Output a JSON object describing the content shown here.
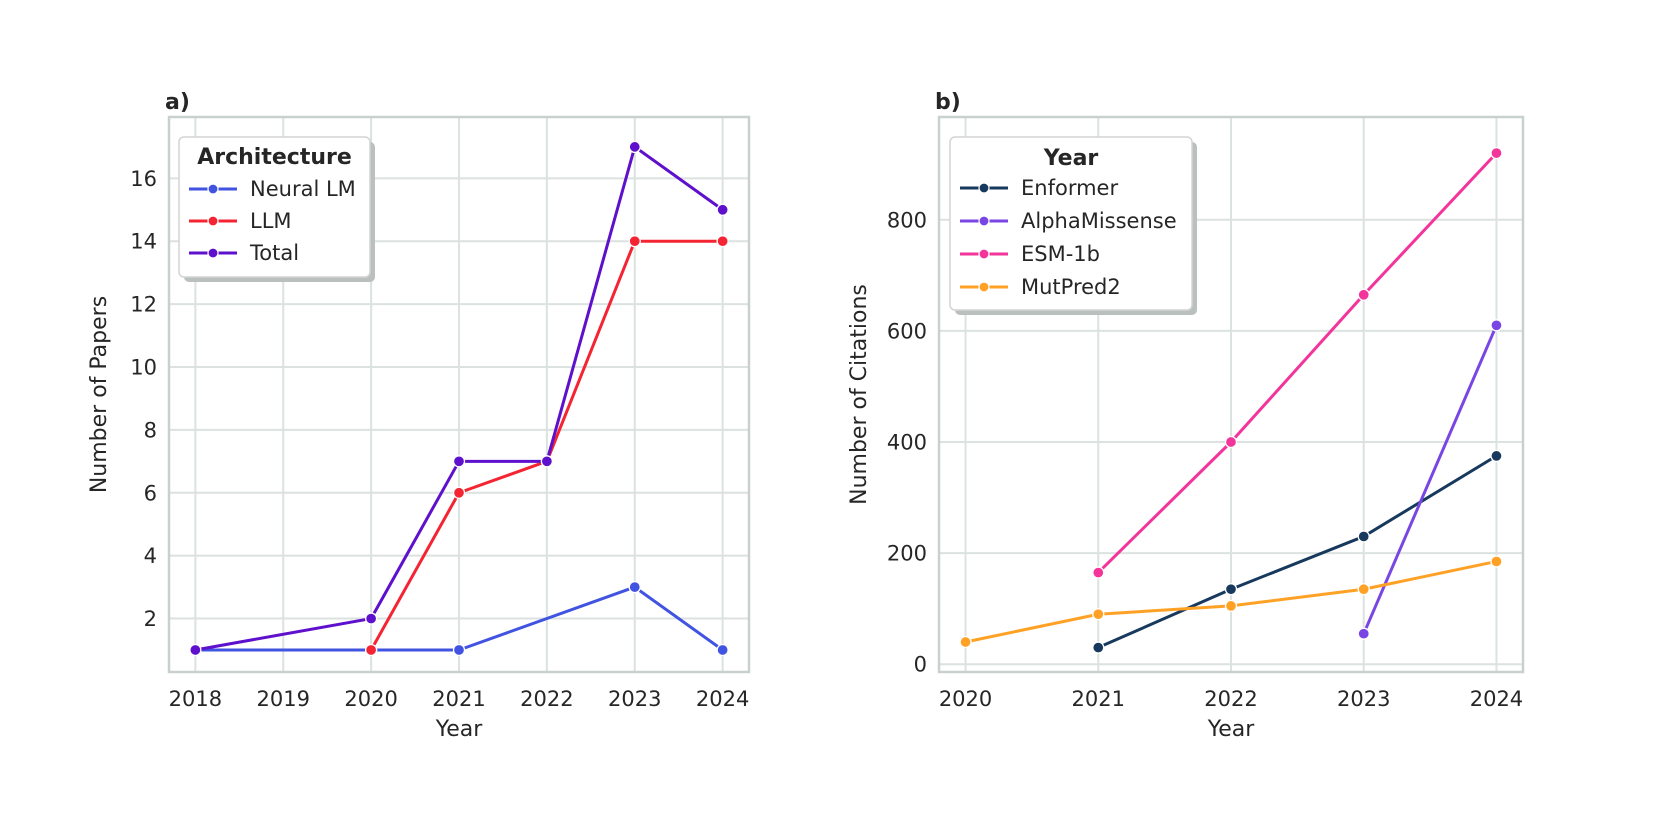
{
  "figure": {
    "background": "#ffffff",
    "text_color": "#262626",
    "grid_color": "#dbe2df",
    "axes_border_color": "#c9d1ce",
    "legend_shadow_color": "#b9c0bd",
    "legend_border_color": "#d4d4d4"
  },
  "chart_data": [
    {
      "type": "line",
      "panel_label": "a)",
      "title": "",
      "xlabel": "Year",
      "ylabel": "Number of Papers",
      "legend_title": "Architecture",
      "legend_position": "upper left",
      "grid": true,
      "x_ticks": [
        2018,
        2019,
        2020,
        2021,
        2022,
        2023,
        2024
      ],
      "y_ticks": [
        2,
        4,
        6,
        8,
        10,
        12,
        14,
        16
      ],
      "x_range": [
        2017.7,
        2024.3
      ],
      "y_range": [
        0.3,
        17.95
      ],
      "series": [
        {
          "name": "Neural LM",
          "color": "#4153e1",
          "x": [
            2018,
            2020,
            2021,
            2023,
            2024
          ],
          "values": [
            1,
            1,
            1,
            3,
            1
          ]
        },
        {
          "name": "LLM",
          "color": "#f42433",
          "x": [
            2020,
            2021,
            2022,
            2023,
            2024
          ],
          "values": [
            1,
            6,
            7,
            14,
            14
          ]
        },
        {
          "name": "Total",
          "color": "#5e10cc",
          "x": [
            2018,
            2020,
            2021,
            2022,
            2023,
            2024
          ],
          "values": [
            1,
            2,
            7,
            7,
            17,
            15
          ]
        }
      ]
    },
    {
      "type": "line",
      "panel_label": "b)",
      "title": "",
      "xlabel": "Year",
      "ylabel": "Number of Citations",
      "legend_title": "Year",
      "legend_position": "upper left",
      "grid": true,
      "x_ticks": [
        2020,
        2021,
        2022,
        2023,
        2024
      ],
      "y_ticks": [
        0,
        200,
        400,
        600,
        800
      ],
      "x_range": [
        2019.8,
        2024.2
      ],
      "y_range": [
        -14,
        985
      ],
      "series": [
        {
          "name": "Enformer",
          "color": "#17395d",
          "x": [
            2021,
            2022,
            2023,
            2024
          ],
          "values": [
            30,
            135,
            230,
            375
          ]
        },
        {
          "name": "AlphaMissense",
          "color": "#7946e4",
          "x": [
            2023,
            2024
          ],
          "values": [
            55,
            610
          ]
        },
        {
          "name": "ESM-1b",
          "color": "#f3349b",
          "x": [
            2021,
            2022,
            2023,
            2024
          ],
          "values": [
            165,
            400,
            665,
            920
          ]
        },
        {
          "name": "MutPred2",
          "color": "#ffa125",
          "x": [
            2020,
            2021,
            2022,
            2023,
            2024
          ],
          "values": [
            40,
            90,
            105,
            135,
            185
          ]
        }
      ]
    }
  ]
}
